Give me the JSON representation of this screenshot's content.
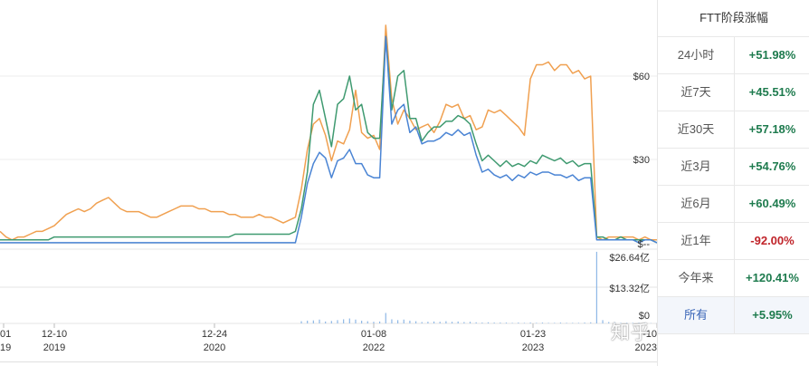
{
  "chart_data": {
    "type": "line",
    "ylim": [
      0,
      84
    ],
    "y_ticks": [
      "$60",
      "$30",
      "$--"
    ],
    "volume_ticks": [
      "$26.64亿",
      "$13.32亿",
      "$0"
    ],
    "x_ticks": [
      {
        "date": "01",
        "year": "19"
      },
      {
        "date": "12-10",
        "year": "2019"
      },
      {
        "date": "12-24",
        "year": "2020"
      },
      {
        "date": "01-08",
        "year": "2022"
      },
      {
        "date": "01-23",
        "year": "2023"
      },
      {
        "date": "-10",
        "year": "2023"
      }
    ],
    "series": [
      {
        "color": "#f0a050",
        "values": [
          5,
          3,
          2,
          3,
          3,
          4,
          5,
          5,
          6,
          7,
          9,
          11,
          12,
          13,
          12,
          13,
          15,
          16,
          17,
          15,
          13,
          12,
          12,
          12,
          11,
          10,
          10,
          11,
          12,
          13,
          14,
          14,
          14,
          13,
          13,
          12,
          12,
          12,
          11,
          11,
          10,
          10,
          10,
          11,
          10,
          10,
          9,
          8,
          9,
          10,
          20,
          34,
          43,
          45,
          39,
          30,
          37,
          36,
          41,
          55,
          40,
          38,
          39,
          34,
          78,
          52,
          43,
          48,
          45,
          41,
          42,
          43,
          40,
          44,
          50,
          49,
          50,
          45,
          46,
          41,
          42,
          48,
          47,
          48,
          46,
          44,
          42,
          39,
          59,
          64,
          64,
          65,
          62,
          64,
          64,
          61,
          62,
          59,
          60,
          3,
          2,
          3,
          3,
          3,
          3,
          3,
          2,
          3,
          2,
          2
        ]
      },
      {
        "color": "#3f9a70",
        "values": [
          2,
          2,
          2,
          2,
          2,
          2,
          2,
          2,
          2,
          3,
          3,
          3,
          3,
          3,
          3,
          3,
          3,
          3,
          3,
          3,
          3,
          3,
          3,
          3,
          3,
          3,
          3,
          3,
          3,
          3,
          3,
          3,
          3,
          3,
          3,
          3,
          3,
          3,
          3,
          4,
          4,
          4,
          4,
          4,
          4,
          4,
          4,
          4,
          4,
          5,
          13,
          26,
          50,
          55,
          45,
          35,
          50,
          52,
          60,
          48,
          50,
          40,
          38,
          38,
          74,
          48,
          60,
          62,
          45,
          45,
          37,
          40,
          42,
          42,
          44,
          44,
          46,
          45,
          43,
          36,
          30,
          32,
          30,
          28,
          30,
          28,
          29,
          28,
          30,
          29,
          32,
          31,
          30,
          31,
          29,
          30,
          28,
          29,
          29,
          3,
          3,
          2,
          2,
          3,
          2,
          2,
          2,
          2,
          2,
          1
        ]
      },
      {
        "color": "#4a84d4",
        "values": [
          1,
          1,
          1,
          1,
          1,
          1,
          1,
          1,
          1,
          1,
          1,
          1,
          1,
          1,
          1,
          1,
          1,
          1,
          1,
          1,
          1,
          1,
          1,
          1,
          1,
          1,
          1,
          1,
          1,
          1,
          1,
          1,
          1,
          1,
          1,
          1,
          1,
          1,
          1,
          1,
          1,
          1,
          1,
          1,
          1,
          1,
          1,
          1,
          1,
          1,
          10,
          22,
          29,
          33,
          31,
          24,
          30,
          31,
          34,
          29,
          29,
          25,
          24,
          24,
          74,
          43,
          48,
          50,
          40,
          42,
          36,
          37,
          37,
          38,
          40,
          39,
          41,
          39,
          40,
          32,
          26,
          27,
          25,
          24,
          25,
          23,
          25,
          24,
          26,
          25,
          26,
          26,
          25,
          25,
          24,
          25,
          23,
          24,
          24,
          2,
          2,
          2,
          2,
          2,
          2,
          2,
          1,
          2,
          2,
          1
        ]
      }
    ],
    "volume": [
      0,
      0,
      0,
      0,
      0,
      0,
      0,
      0,
      0,
      0,
      0,
      0,
      0,
      0,
      0,
      0,
      0,
      0,
      0,
      0,
      0,
      0,
      0,
      0,
      0,
      0,
      0,
      0,
      0,
      0,
      0,
      0,
      0,
      0,
      0,
      0,
      0,
      0,
      0,
      0,
      0,
      0,
      0,
      0,
      0,
      0,
      0,
      0,
      0,
      0,
      0.8,
      1.0,
      1.1,
      1.4,
      0.7,
      0.9,
      1.2,
      1.5,
      1.8,
      1.4,
      1.0,
      0.8,
      0.6,
      0.7,
      3.8,
      1.5,
      1.2,
      1.4,
      1.0,
      0.8,
      0.5,
      0.6,
      0.7,
      0.6,
      0.8,
      0.6,
      0.7,
      0.5,
      0.6,
      0.4,
      0.3,
      0.4,
      0.3,
      0.3,
      0.3,
      0.2,
      0.3,
      0.2,
      0.3,
      0.2,
      0.3,
      0.2,
      0.2,
      0.3,
      0.2,
      0.2,
      0.2,
      0.3,
      0.4,
      26.0,
      1.2,
      0.5,
      0.4,
      0.2,
      0.2,
      0.2,
      0.2,
      0.2,
      0.1,
      0.1
    ],
    "volume_max": 26.64
  },
  "panel": {
    "title": "FTT阶段涨幅",
    "rows": [
      {
        "label": "24小时",
        "value": "+51.98%",
        "sign": "pos"
      },
      {
        "label": "近7天",
        "value": "+45.51%",
        "sign": "pos"
      },
      {
        "label": "近30天",
        "value": "+57.18%",
        "sign": "pos"
      },
      {
        "label": "近3月",
        "value": "+54.76%",
        "sign": "pos"
      },
      {
        "label": "近6月",
        "value": "+60.49%",
        "sign": "pos"
      },
      {
        "label": "近1年",
        "value": "-92.00%",
        "sign": "neg"
      },
      {
        "label": "今年来",
        "value": "+120.41%",
        "sign": "pos"
      },
      {
        "label": "所有",
        "value": "+5.95%",
        "sign": "pos",
        "active": true
      }
    ]
  },
  "watermark": "知乎 @趣链小探"
}
